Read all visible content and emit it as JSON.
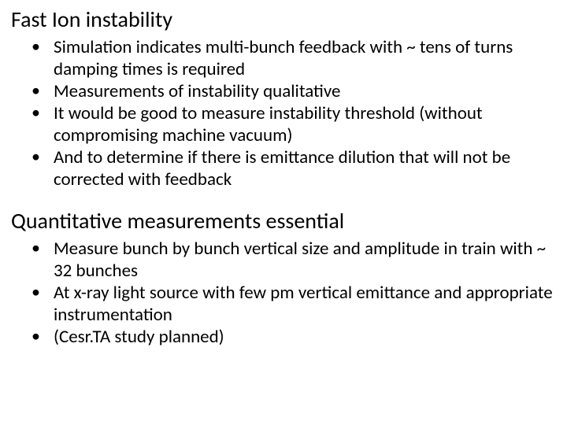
{
  "section1": {
    "heading": "Fast Ion instability",
    "bullets": [
      "Simulation indicates multi-bunch feedback with ~ tens of turns damping times is required",
      "Measurements of instability qualitative",
      "It would be good to measure instability threshold (without compromising machine vacuum)",
      "And to determine if there is emittance dilution that will not be corrected with feedback"
    ]
  },
  "section2": {
    "heading": "Quantitative measurements essential",
    "bullets": [
      "Measure bunch by bunch vertical size and amplitude in train with ~ 32 bunches",
      "At x-ray light source with few pm vertical emittance and appropriate instrumentation",
      "(Cesr.TA study planned)"
    ]
  }
}
